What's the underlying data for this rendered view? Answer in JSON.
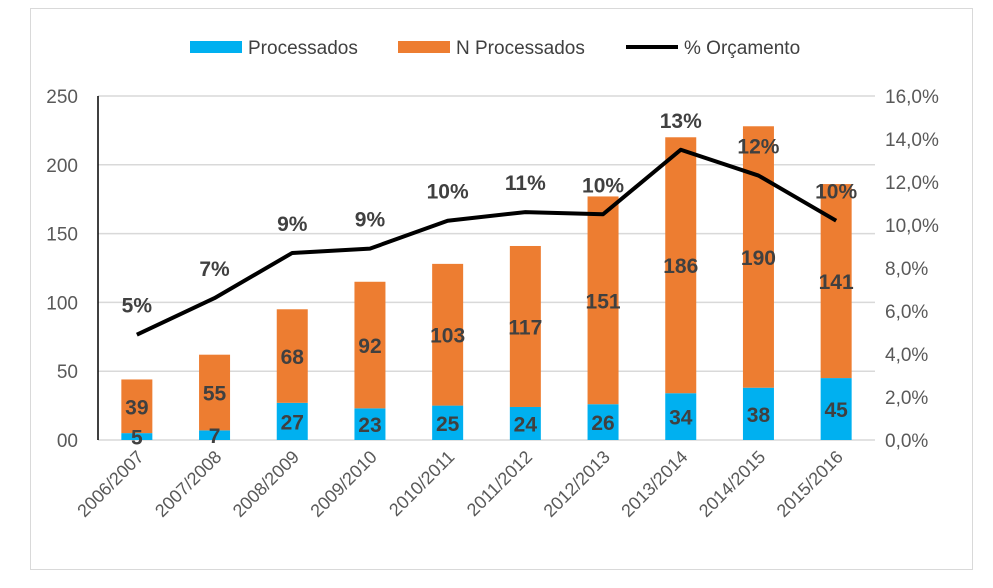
{
  "chart_data": {
    "type": "bar",
    "stacked": true,
    "categories": [
      "2006/2007",
      "2007/2008",
      "2008/2009",
      "2009/2010",
      "2010/2011",
      "2011/2012",
      "2012/2013",
      "2013/2014",
      "2014/2015",
      "2015/2016"
    ],
    "series": [
      {
        "name": "Processados",
        "type": "bar",
        "axis": "left",
        "color": "#00b0f0",
        "values": [
          5,
          7,
          27,
          23,
          25,
          24,
          26,
          34,
          38,
          45
        ]
      },
      {
        "name": "N Processados",
        "type": "bar",
        "axis": "left",
        "color": "#ed7d31",
        "values": [
          39,
          55,
          68,
          92,
          103,
          117,
          151,
          186,
          190,
          141
        ]
      },
      {
        "name": "% Orçamento",
        "type": "line",
        "axis": "right",
        "color": "#000000",
        "values": [
          4.9,
          6.6,
          8.7,
          8.9,
          10.2,
          10.6,
          10.5,
          13.5,
          12.3,
          10.2
        ],
        "labels": [
          "5%",
          "7%",
          "9%",
          "9%",
          "10%",
          "11%",
          "10%",
          "13%",
          "12%",
          "10%"
        ]
      }
    ],
    "y_left": {
      "range": [
        0,
        250
      ],
      "ticks": [
        0,
        50,
        100,
        150,
        200,
        250
      ],
      "tick_labels": [
        "00",
        "50",
        "100",
        "150",
        "200",
        "250"
      ]
    },
    "y_right": {
      "range": [
        0,
        16
      ],
      "ticks": [
        0,
        2,
        4,
        6,
        8,
        10,
        12,
        14,
        16
      ],
      "tick_labels": [
        "0,0%",
        "2,0%",
        "4,0%",
        "6,0%",
        "8,0%",
        "10,0%",
        "12,0%",
        "14,0%",
        "16,0%"
      ]
    },
    "grid": true,
    "legend": "top",
    "title": "",
    "xlabel": "",
    "ylabel": ""
  }
}
